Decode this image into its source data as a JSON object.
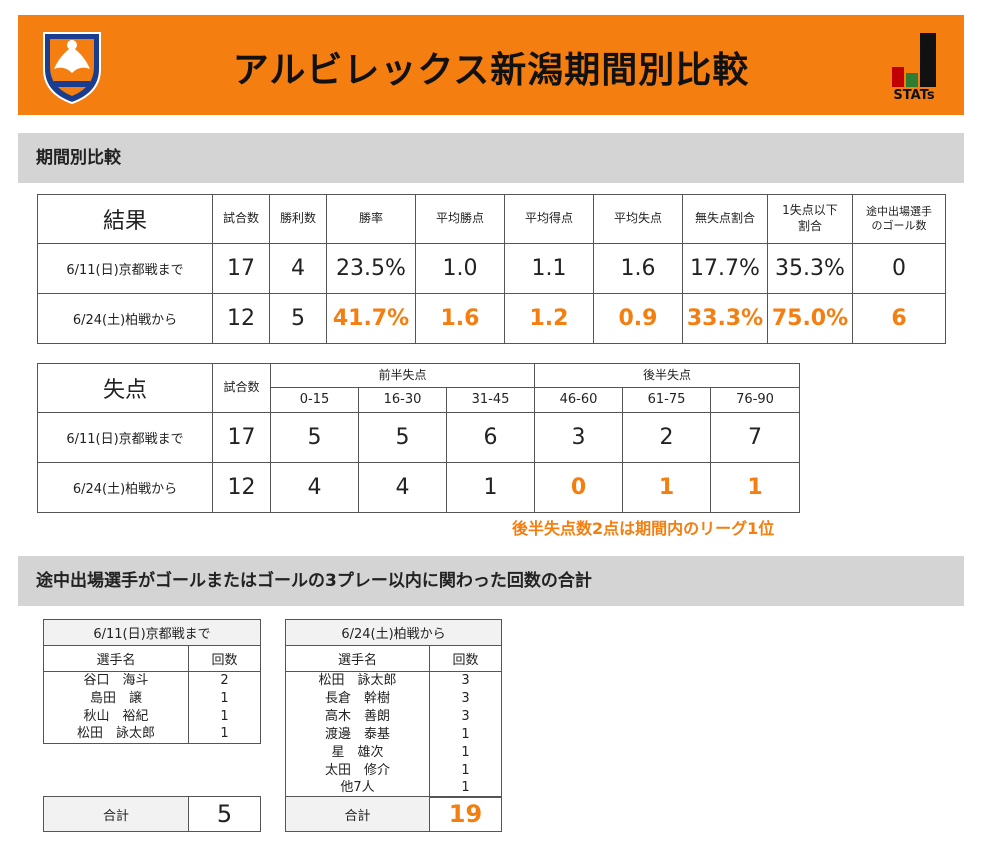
{
  "header": {
    "title": "アルビレックス新潟期間別比較",
    "stats_label": "STATs",
    "colors": {
      "accent": "#f47e0f"
    }
  },
  "sections": {
    "s1": "期間別比較",
    "s2": "途中出場選手がゴールまたはゴールの3プレー以内に関わった回数の合計"
  },
  "results": {
    "head": "結果",
    "columns": [
      "試合数",
      "勝利数",
      "勝率",
      "平均勝点",
      "平均得点",
      "平均失点",
      "無失点割合",
      "1失点以下\n割合",
      "途中出場選手\nのゴール数"
    ],
    "rows": [
      {
        "label": "6/11(日)京都戦まで",
        "values": [
          "17",
          "4",
          "23.5%",
          "1.0",
          "1.1",
          "1.6",
          "17.7%",
          "35.3%",
          "0"
        ]
      },
      {
        "label": "6/24(土)柏戦から",
        "values": [
          "12",
          "5",
          "41.7%",
          "1.6",
          "1.2",
          "0.9",
          "33.3%",
          "75.0%",
          "6"
        ]
      }
    ]
  },
  "conceded": {
    "head": "失点",
    "games_col": "試合数",
    "first_half": "前半失点",
    "second_half": "後半失点",
    "intervals": [
      "0-15",
      "16-30",
      "31-45",
      "46-60",
      "61-75",
      "76-90"
    ],
    "rows": [
      {
        "label": "6/11(日)京都戦まで",
        "values": [
          "17",
          "5",
          "5",
          "6",
          "3",
          "2",
          "7"
        ]
      },
      {
        "label": "6/24(土)柏戦から",
        "values": [
          "12",
          "4",
          "4",
          "1",
          "0",
          "1",
          "1"
        ]
      }
    ],
    "note": "後半失点数2点は期間内のリーグ1位"
  },
  "subs_before": {
    "caption": "6/11(日)京都戦まで",
    "col_name": "選手名",
    "col_count": "回数",
    "players": [
      {
        "name": "谷口　海斗",
        "count": "2"
      },
      {
        "name": "島田　譲",
        "count": "1"
      },
      {
        "name": "秋山　裕紀",
        "count": "1"
      },
      {
        "name": "松田　詠太郎",
        "count": "1"
      }
    ],
    "total_label": "合計",
    "total": "5"
  },
  "subs_after": {
    "caption": "6/24(土)柏戦から",
    "col_name": "選手名",
    "col_count": "回数",
    "players": [
      {
        "name": "松田　詠太郎",
        "count": "3"
      },
      {
        "name": "長倉　幹樹",
        "count": "3"
      },
      {
        "name": "高木　善朗",
        "count": "3"
      },
      {
        "name": "渡邊　泰基",
        "count": "1"
      },
      {
        "name": "星　雄次",
        "count": "1"
      },
      {
        "name": "太田　修介",
        "count": "1"
      },
      {
        "name": "他7人",
        "count": "1"
      }
    ],
    "total_label": "合計",
    "total": "19"
  }
}
